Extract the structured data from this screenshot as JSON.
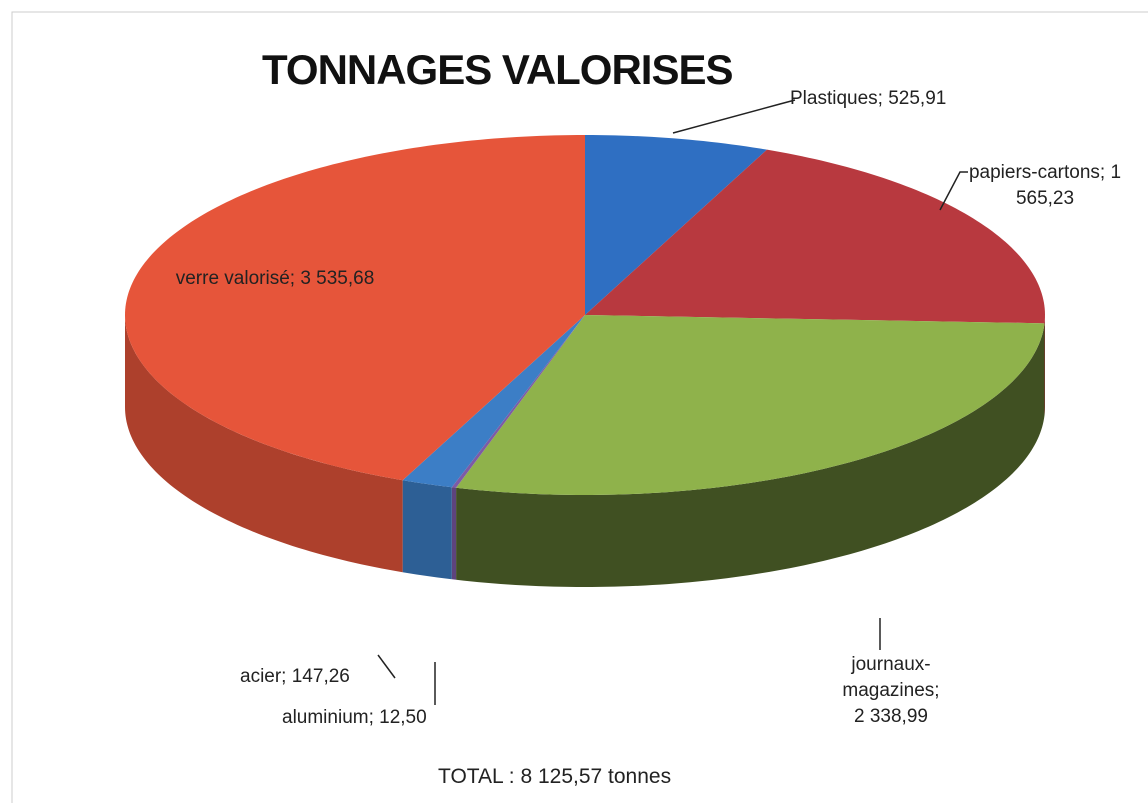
{
  "chart_data": {
    "type": "pie3d",
    "title": "TONNAGES VALORISES",
    "values": [
      525.91,
      1565.23,
      2338.99,
      12.5,
      147.26,
      3535.68
    ],
    "value_labels": [
      "Plastiques; 525,91",
      "papiers-cartons; 1 565,23",
      "journaux-magazines; 2 338,99",
      "aluminium; 12,50",
      "acier; 147,26",
      "verre valorisé; 3 535,68"
    ],
    "colors": [
      "#2f6fc2",
      "#b8393f",
      "#8fb24b",
      "#7d5ba6",
      "#3c7ec6",
      "#e6553a"
    ],
    "total": 8125.57,
    "total_label": "TOTAL : 8 125,57 tonnes"
  }
}
